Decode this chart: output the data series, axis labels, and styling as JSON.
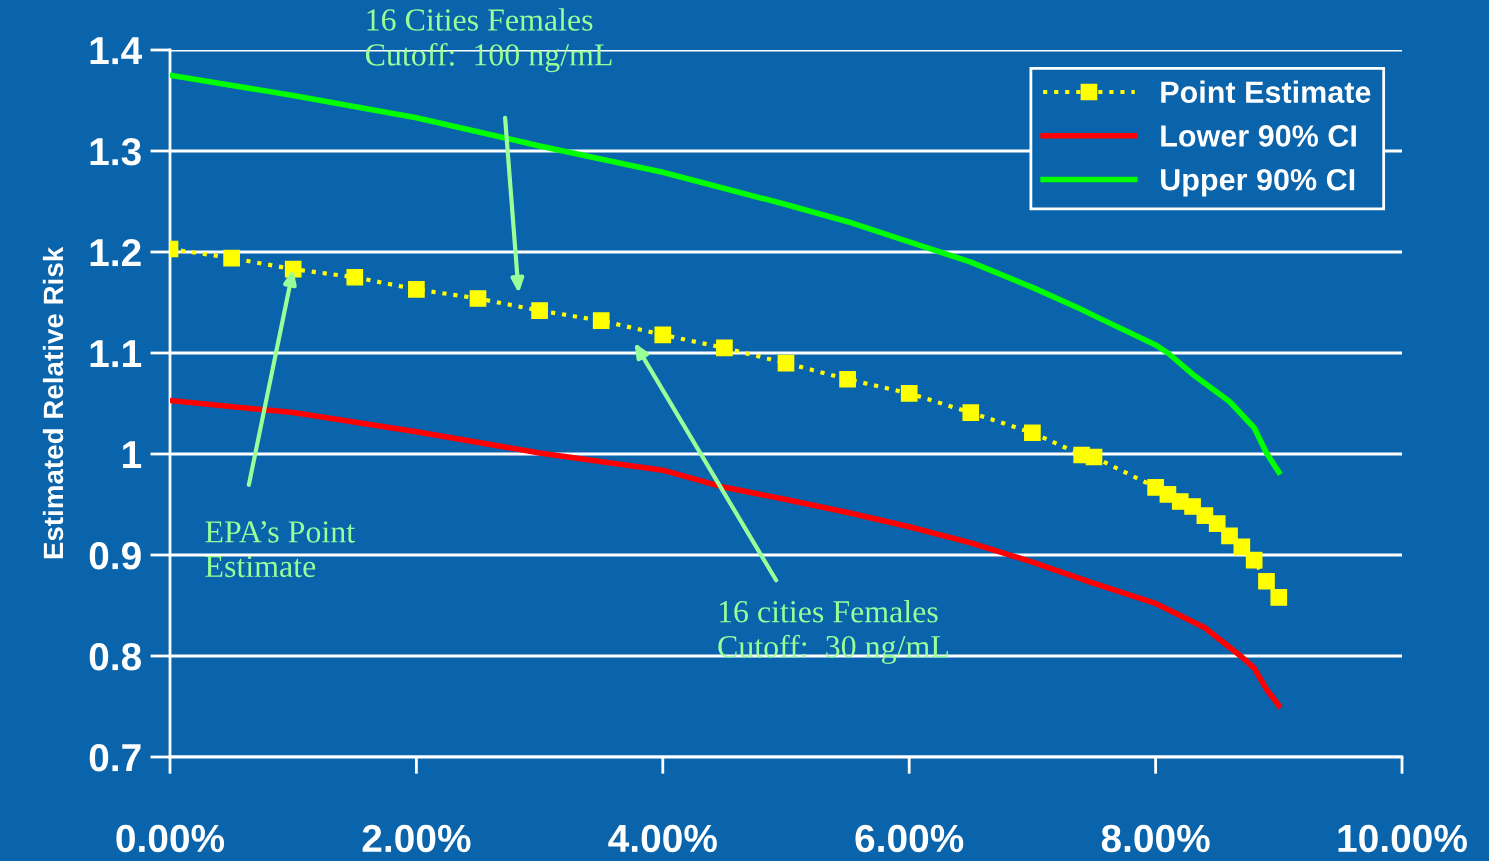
{
  "chart_data": {
    "type": "line",
    "ylabel": "Estimated Relative Risk",
    "xlim": [
      0,
      10
    ],
    "ylim": [
      0.7,
      1.4
    ],
    "xticks": [
      {
        "value": 0,
        "label": "0.00%"
      },
      {
        "value": 2,
        "label": "2.00%"
      },
      {
        "value": 4,
        "label": "4.00%"
      },
      {
        "value": 6,
        "label": "6.00%"
      },
      {
        "value": 8,
        "label": "8.00%"
      },
      {
        "value": 10,
        "label": "10.00%"
      }
    ],
    "yticks": [
      0.7,
      0.8,
      0.9,
      1,
      1.1,
      1.2,
      1.3,
      1.4
    ],
    "grid": "y",
    "legend": "top right",
    "series": [
      {
        "name": "Point Estimate",
        "color": "#ffff00",
        "marker": "square",
        "line_style": "dotted",
        "x": [
          0,
          0.5,
          1,
          1.5,
          2,
          2.5,
          3,
          3.5,
          4,
          4.5,
          5,
          5.5,
          6,
          6.5,
          7,
          7.4,
          7.5,
          8,
          8.1,
          8.2,
          8.3,
          8.4,
          8.5,
          8.6,
          8.7,
          8.8,
          8.9,
          9
        ],
        "values": [
          1.203,
          1.194,
          1.183,
          1.175,
          1.163,
          1.154,
          1.142,
          1.132,
          1.118,
          1.105,
          1.09,
          1.074,
          1.06,
          1.041,
          1.021,
          0.999,
          0.997,
          0.967,
          0.96,
          0.953,
          0.948,
          0.939,
          0.931,
          0.919,
          0.908,
          0.895,
          0.874,
          0.858
        ]
      },
      {
        "name": "Lower 90% CI",
        "color": "#ff0000",
        "marker": "none",
        "line_style": "solid",
        "x": [
          0,
          1,
          2,
          3,
          4,
          4.5,
          5,
          5.5,
          6,
          6.5,
          7,
          7.4,
          7.5,
          8,
          8.1,
          8.4,
          8.7,
          8.8,
          8.9,
          9
        ],
        "values": [
          1.053,
          1.041,
          1.022,
          1.001,
          0.984,
          0.967,
          0.955,
          0.942,
          0.928,
          0.912,
          0.893,
          0.876,
          0.872,
          0.852,
          0.846,
          0.828,
          0.799,
          0.788,
          0.767,
          0.751
        ]
      },
      {
        "name": "Upper 90% CI",
        "color": "#00ff00",
        "marker": "none",
        "line_style": "solid",
        "x": [
          0,
          1,
          2,
          3,
          4,
          5,
          5.5,
          6,
          6.5,
          7,
          7.4,
          7.5,
          8,
          8.1,
          8.3,
          8.6,
          8.8,
          8.9,
          9
        ],
        "values": [
          1.375,
          1.355,
          1.333,
          1.305,
          1.279,
          1.247,
          1.23,
          1.21,
          1.19,
          1.165,
          1.143,
          1.137,
          1.108,
          1.1,
          1.079,
          1.052,
          1.026,
          1.001,
          0.982
        ]
      }
    ],
    "annotations": [
      "16 Cities Females\nCutoff:  100 ng/mL",
      {
        "text": "EPA’s Point\nEstimate",
        "x": 1,
        "y": 1.183
      },
      "16 cities Females\nCutoff:  30 ng/mL"
    ]
  }
}
